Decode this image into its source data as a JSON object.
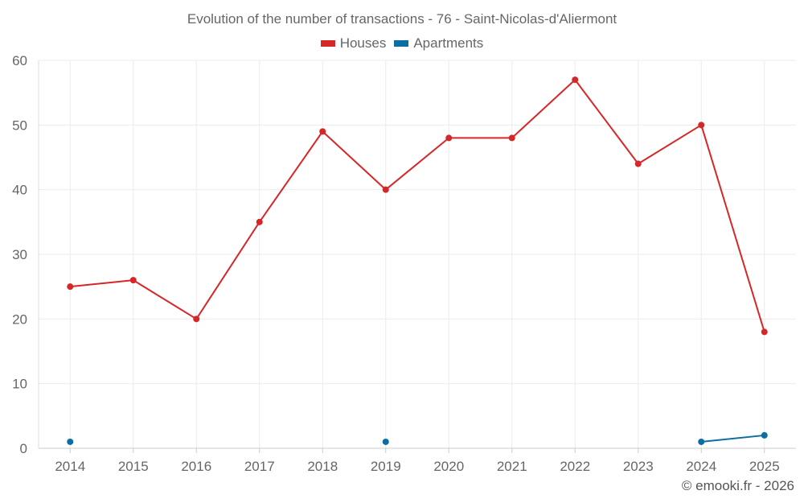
{
  "chart_data": {
    "type": "line",
    "title": "Evolution of the number of transactions - 76 - Saint-Nicolas-d'Aliermont",
    "xlabel": "",
    "ylabel": "",
    "categories": [
      "2014",
      "2015",
      "2016",
      "2017",
      "2018",
      "2019",
      "2020",
      "2021",
      "2022",
      "2023",
      "2024",
      "2025"
    ],
    "ylim": [
      0,
      60
    ],
    "yticks": [
      0,
      10,
      20,
      30,
      40,
      50,
      60
    ],
    "grid": true,
    "legend_position": "top-center",
    "series": [
      {
        "name": "Houses",
        "color": "#d62728",
        "values": [
          25,
          26,
          20,
          35,
          49,
          40,
          48,
          48,
          57,
          44,
          50,
          18
        ]
      },
      {
        "name": "Apartments",
        "color": "#0b6ea3",
        "values": [
          1,
          null,
          null,
          null,
          null,
          1,
          null,
          null,
          null,
          null,
          1,
          2
        ]
      }
    ]
  },
  "credit": "© emooki.fr - 2026"
}
